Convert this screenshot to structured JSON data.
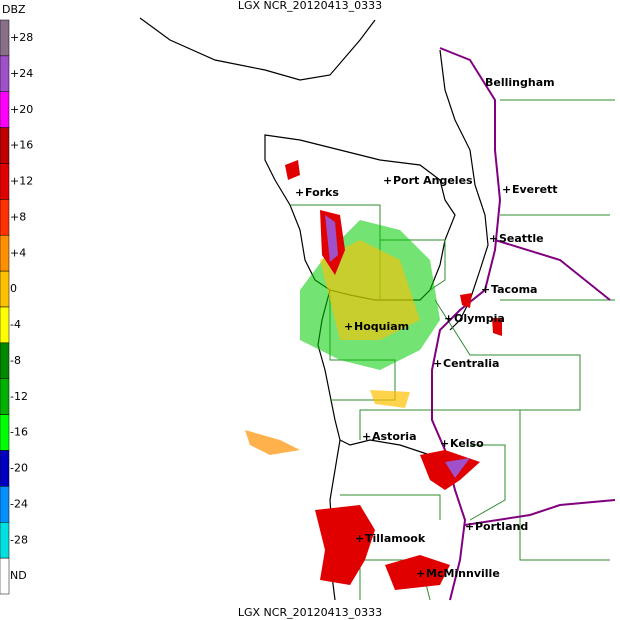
{
  "header": {
    "title": "LGX NCR_20120413_0333"
  },
  "footer": {
    "title": "LGX NCR_20120413_0333"
  },
  "legend": {
    "unit": "DBZ",
    "items": [
      {
        "label": "+28",
        "color": "#8a6f8a"
      },
      {
        "label": "+24",
        "color": "#a050c8"
      },
      {
        "label": "+20",
        "color": "#ff00ff"
      },
      {
        "label": "+16",
        "color": "#c00000"
      },
      {
        "label": "+12",
        "color": "#e00000"
      },
      {
        "label": "+8",
        "color": "#ff3000"
      },
      {
        "label": "+4",
        "color": "#ff9000"
      },
      {
        "label": "0",
        "color": "#ffc000"
      },
      {
        "label": "-4",
        "color": "#ffff00"
      },
      {
        "label": "-8",
        "color": "#008800"
      },
      {
        "label": "-12",
        "color": "#00b000"
      },
      {
        "label": "-16",
        "color": "#00ff00"
      },
      {
        "label": "-20",
        "color": "#0000c0"
      },
      {
        "label": "-24",
        "color": "#0090ff"
      },
      {
        "label": "-28",
        "color": "#00e0e0"
      },
      {
        "label": "ND",
        "color": "#ffffff"
      }
    ]
  },
  "cities": [
    {
      "label": "Bellingham"
    },
    {
      "label": "Port Angeles"
    },
    {
      "label": "Forks"
    },
    {
      "label": "Everett"
    },
    {
      "label": "Seattle"
    },
    {
      "label": "Tacoma"
    },
    {
      "label": "Olympia"
    },
    {
      "label": "Hoquiam"
    },
    {
      "label": "Centralia"
    },
    {
      "label": "Astoria"
    },
    {
      "label": "Kelso"
    },
    {
      "label": "Portland"
    },
    {
      "label": "Tillamook"
    },
    {
      "label": "McMinnville"
    }
  ]
}
